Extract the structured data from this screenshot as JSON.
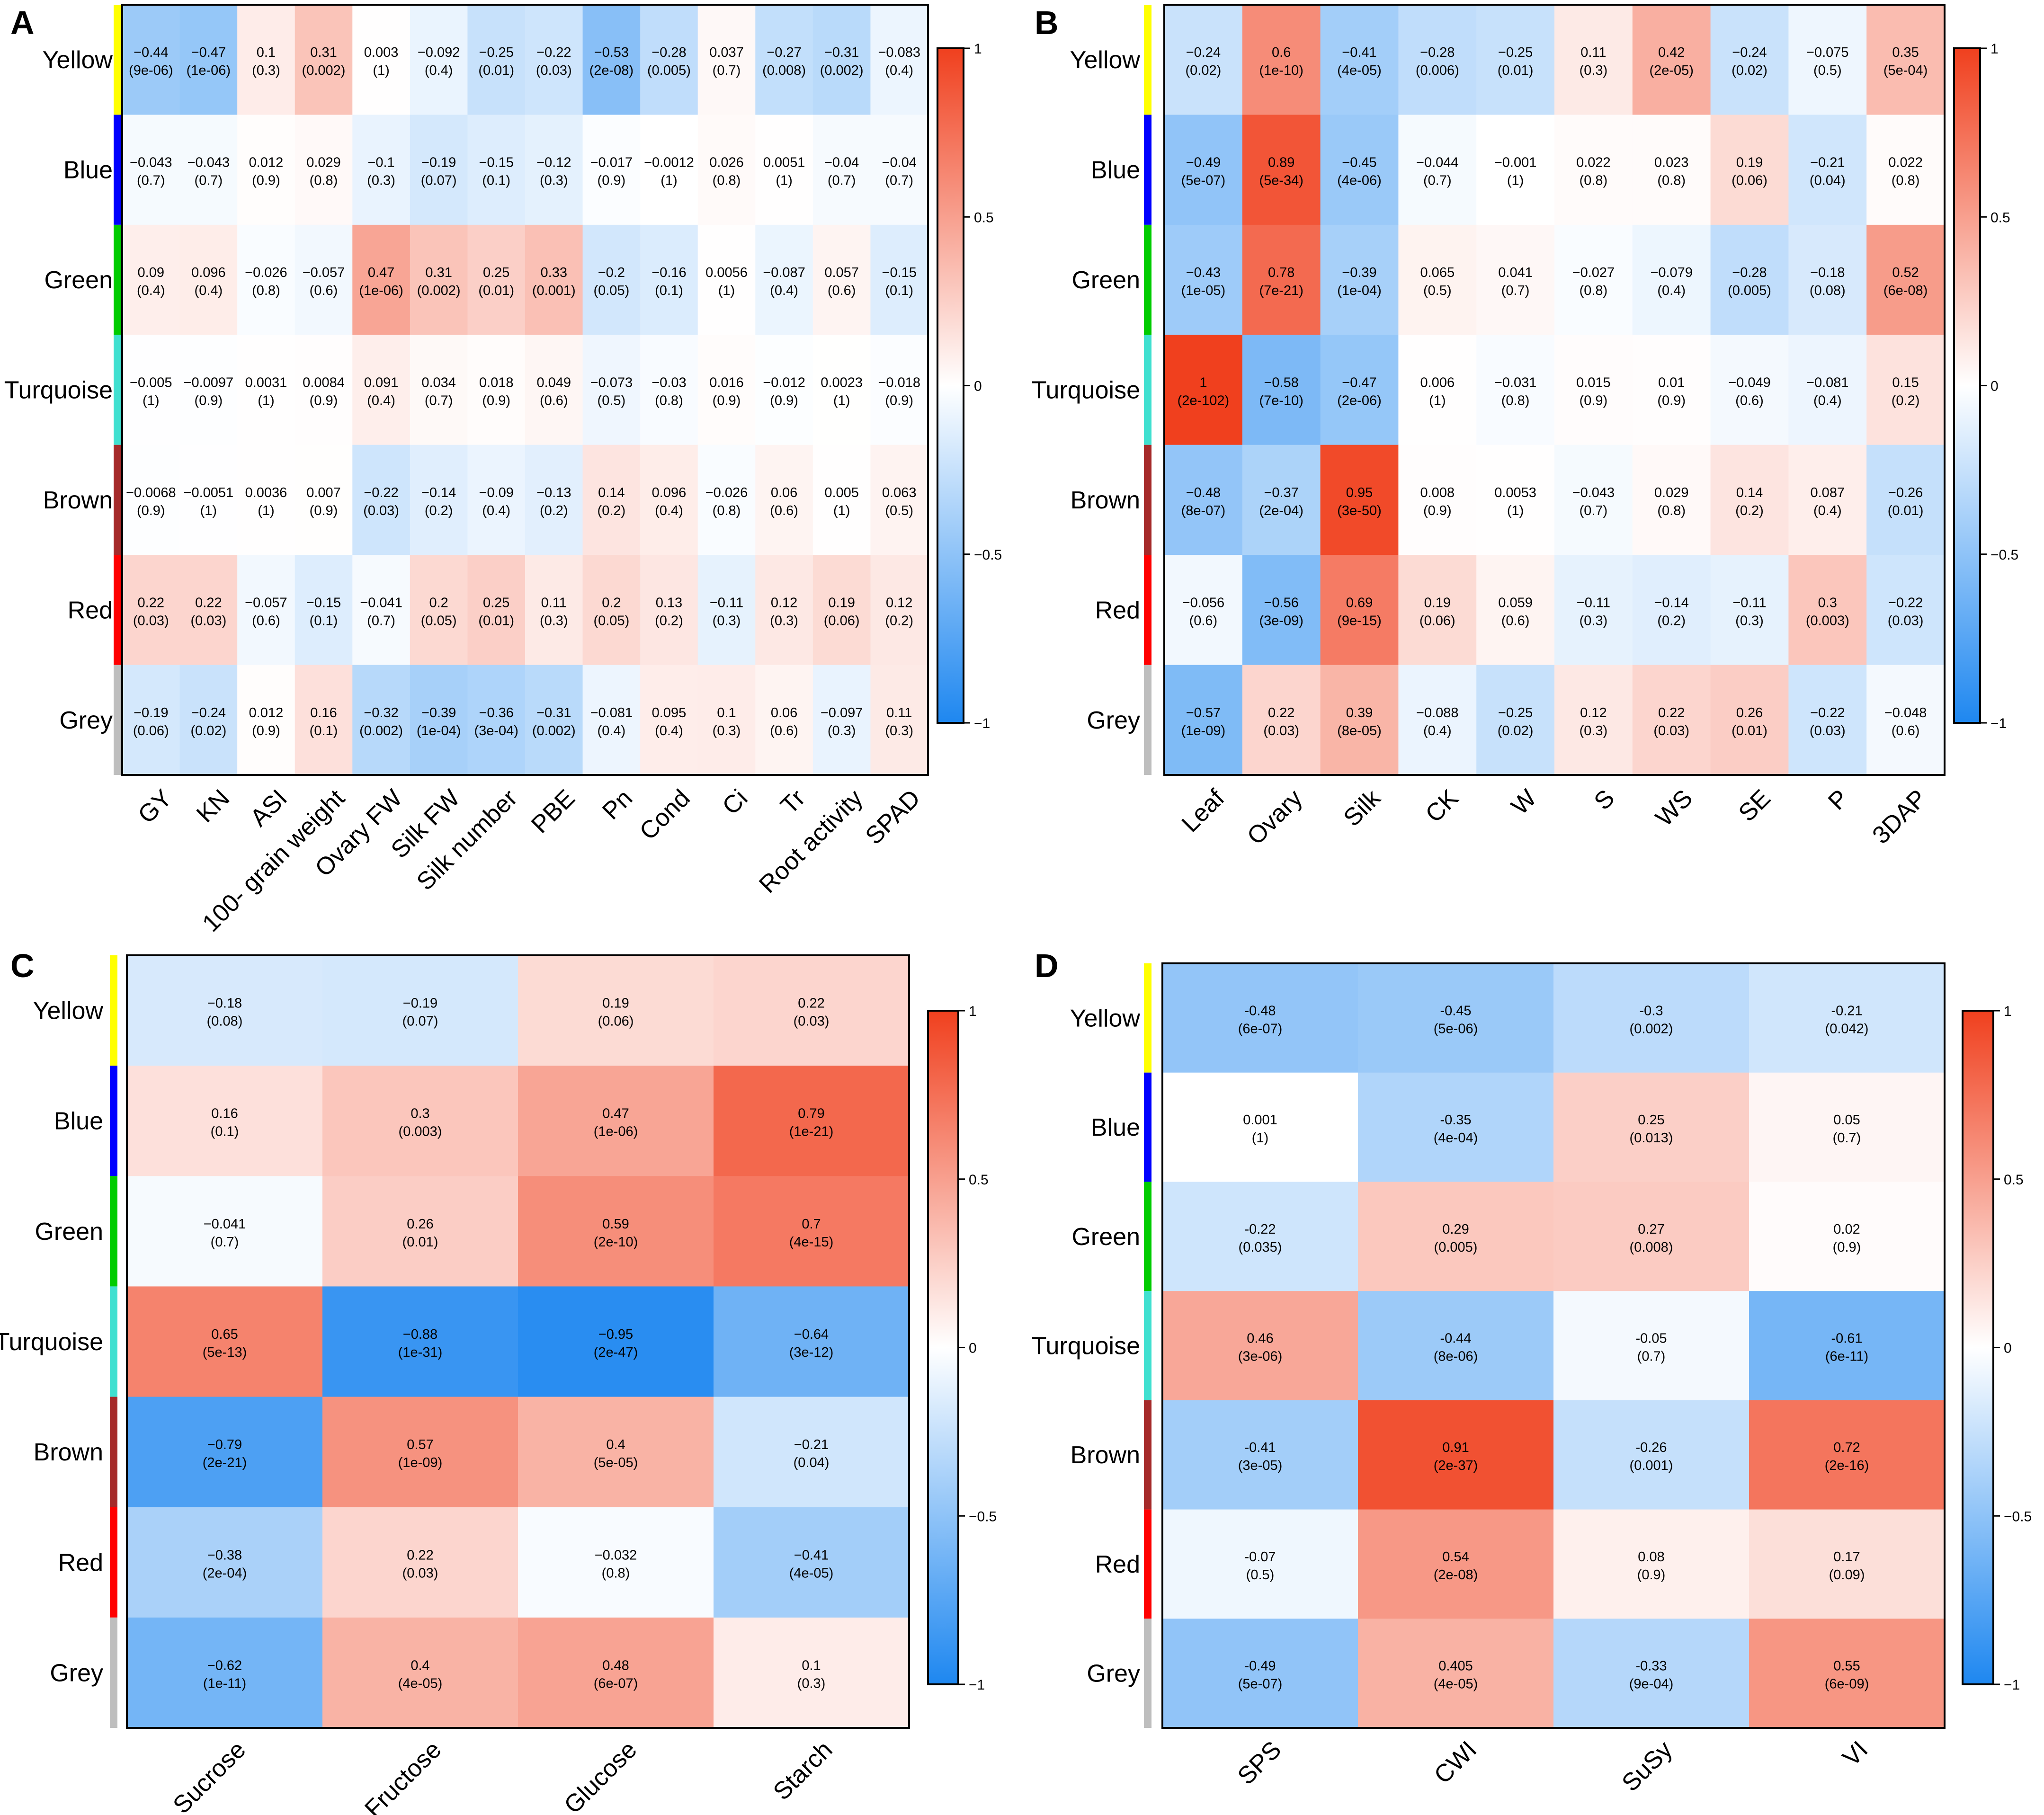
{
  "figure": {
    "colorbar": {
      "ticks": [
        "1",
        "0.5",
        "0",
        "−0.5",
        "−1"
      ],
      "tick_values": [
        1,
        0.5,
        0,
        -0.5,
        -1
      ]
    },
    "modules": [
      {
        "name": "Yellow",
        "color": "#ffff00"
      },
      {
        "name": "Blue",
        "color": "#0000ff"
      },
      {
        "name": "Green",
        "color": "#00cc00"
      },
      {
        "name": "Turquoise",
        "color": "#40e0d0"
      },
      {
        "name": "Brown",
        "color": "#a52a2a"
      },
      {
        "name": "Red",
        "color": "#ff0000"
      },
      {
        "name": "Grey",
        "color": "#bebebe"
      }
    ],
    "scale_colors": {
      "neg": "#1e87f0",
      "mid": "#ffffff",
      "pos": "#f0401e"
    }
  },
  "chart_data": [
    {
      "panel": "A",
      "type": "heatmap",
      "rows": [
        "Yellow",
        "Blue",
        "Green",
        "Turquoise",
        "Brown",
        "Red",
        "Grey"
      ],
      "columns": [
        "GY",
        "KN",
        "ASI",
        "100- grain weight",
        "Ovary FW",
        "Silk FW",
        "Silk number",
        "PBE",
        "Pn",
        "Cond",
        "Ci",
        "Tr",
        "Root activity",
        "SPAD"
      ],
      "values": [
        [
          -0.44,
          -0.47,
          0.1,
          0.31,
          0.003,
          -0.092,
          -0.25,
          -0.22,
          -0.53,
          -0.28,
          0.037,
          -0.27,
          -0.31,
          -0.083
        ],
        [
          -0.043,
          -0.043,
          0.012,
          0.029,
          -0.1,
          -0.19,
          -0.15,
          -0.12,
          -0.017,
          -0.0012,
          0.026,
          0.0051,
          -0.04,
          -0.04
        ],
        [
          0.09,
          0.096,
          -0.026,
          -0.057,
          0.47,
          0.31,
          0.25,
          0.33,
          -0.2,
          -0.16,
          0.0056,
          -0.087,
          0.057,
          -0.15
        ],
        [
          -0.005,
          -0.0097,
          0.0031,
          0.0084,
          0.091,
          0.034,
          0.018,
          0.049,
          -0.073,
          -0.03,
          0.016,
          -0.012,
          0.0023,
          -0.018
        ],
        [
          -0.0068,
          -0.0051,
          0.0036,
          0.007,
          -0.22,
          -0.14,
          -0.09,
          -0.13,
          0.14,
          0.096,
          -0.026,
          0.06,
          0.005,
          0.063
        ],
        [
          0.22,
          0.22,
          -0.057,
          -0.15,
          -0.041,
          0.2,
          0.25,
          0.11,
          0.2,
          0.13,
          -0.11,
          0.12,
          0.19,
          0.12
        ],
        [
          -0.19,
          -0.24,
          0.012,
          0.16,
          -0.32,
          -0.39,
          -0.36,
          -0.31,
          -0.081,
          0.095,
          0.1,
          0.06,
          -0.097,
          0.11
        ]
      ],
      "labels": [
        [
          "−0.44",
          "−0.47",
          "0.1",
          "0.31",
          "0.003",
          "−0.092",
          "−0.25",
          "−0.22",
          "−0.53",
          "−0.28",
          "0.037",
          "−0.27",
          "−0.31",
          "−0.083"
        ],
        [
          "−0.043",
          "−0.043",
          "0.012",
          "0.029",
          "−0.1",
          "−0.19",
          "−0.15",
          "−0.12",
          "−0.017",
          "−0.0012",
          "0.026",
          "0.0051",
          "−0.04",
          "−0.04"
        ],
        [
          "0.09",
          "0.096",
          "−0.026",
          "−0.057",
          "0.47",
          "0.31",
          "0.25",
          "0.33",
          "−0.2",
          "−0.16",
          "0.0056",
          "−0.087",
          "0.057",
          "−0.15"
        ],
        [
          "−0.005",
          "−0.0097",
          "0.0031",
          "0.0084",
          "0.091",
          "0.034",
          "0.018",
          "0.049",
          "−0.073",
          "−0.03",
          "0.016",
          "−0.012",
          "0.0023",
          "−0.018"
        ],
        [
          "−0.0068",
          "−0.0051",
          "0.0036",
          "0.007",
          "−0.22",
          "−0.14",
          "−0.09",
          "−0.13",
          "0.14",
          "0.096",
          "−0.026",
          "0.06",
          "0.005",
          "0.063"
        ],
        [
          "0.22",
          "0.22",
          "−0.057",
          "−0.15",
          "−0.041",
          "0.2",
          "0.25",
          "0.11",
          "0.2",
          "0.13",
          "−0.11",
          "0.12",
          "0.19",
          "0.12"
        ],
        [
          "−0.19",
          "−0.24",
          "0.012",
          "0.16",
          "−0.32",
          "−0.39",
          "−0.36",
          "−0.31",
          "−0.081",
          "0.095",
          "0.1",
          "0.06",
          "−0.097",
          "0.11"
        ]
      ],
      "pvalues": [
        [
          "(9e-06)",
          "(1e-06)",
          "(0.3)",
          "(0.002)",
          "(1)",
          "(0.4)",
          "(0.01)",
          "(0.03)",
          "(2e-08)",
          "(0.005)",
          "(0.7)",
          "(0.008)",
          "(0.002)",
          "(0.4)"
        ],
        [
          "(0.7)",
          "(0.7)",
          "(0.9)",
          "(0.8)",
          "(0.3)",
          "(0.07)",
          "(0.1)",
          "(0.3)",
          "(0.9)",
          "(1)",
          "(0.8)",
          "(1)",
          "(0.7)",
          "(0.7)"
        ],
        [
          "(0.4)",
          "(0.4)",
          "(0.8)",
          "(0.6)",
          "(1e-06)",
          "(0.002)",
          "(0.01)",
          "(0.001)",
          "(0.05)",
          "(0.1)",
          "(1)",
          "(0.4)",
          "(0.6)",
          "(0.1)"
        ],
        [
          "(1)",
          "(0.9)",
          "(1)",
          "(0.9)",
          "(0.4)",
          "(0.7)",
          "(0.9)",
          "(0.6)",
          "(0.5)",
          "(0.8)",
          "(0.9)",
          "(0.9)",
          "(1)",
          "(0.9)"
        ],
        [
          "(0.9)",
          "(1)",
          "(1)",
          "(0.9)",
          "(0.03)",
          "(0.2)",
          "(0.4)",
          "(0.2)",
          "(0.2)",
          "(0.4)",
          "(0.8)",
          "(0.6)",
          "(1)",
          "(0.5)"
        ],
        [
          "(0.03)",
          "(0.03)",
          "(0.6)",
          "(0.1)",
          "(0.7)",
          "(0.05)",
          "(0.01)",
          "(0.3)",
          "(0.05)",
          "(0.2)",
          "(0.3)",
          "(0.3)",
          "(0.06)",
          "(0.2)"
        ],
        [
          "(0.06)",
          "(0.02)",
          "(0.9)",
          "(0.1)",
          "(0.002)",
          "(1e-04)",
          "(3e-04)",
          "(0.002)",
          "(0.4)",
          "(0.4)",
          "(0.3)",
          "(0.6)",
          "(0.3)",
          "(0.3)"
        ]
      ],
      "colorbar_range": [
        -1,
        1
      ]
    },
    {
      "panel": "B",
      "type": "heatmap",
      "rows": [
        "Yellow",
        "Blue",
        "Green",
        "Turquoise",
        "Brown",
        "Red",
        "Grey"
      ],
      "columns": [
        "Leaf",
        "Ovary",
        "Silk",
        "CK",
        "W",
        "S",
        "WS",
        "SE",
        "P",
        "3DAP"
      ],
      "values": [
        [
          -0.24,
          0.6,
          -0.41,
          -0.28,
          -0.25,
          0.11,
          0.42,
          -0.24,
          -0.075,
          0.35
        ],
        [
          -0.49,
          0.89,
          -0.45,
          -0.044,
          -0.001,
          0.022,
          0.023,
          0.19,
          -0.21,
          0.022
        ],
        [
          -0.43,
          0.78,
          -0.39,
          0.065,
          0.041,
          -0.027,
          -0.079,
          -0.28,
          -0.18,
          0.52
        ],
        [
          1,
          -0.58,
          -0.47,
          0.006,
          -0.031,
          0.015,
          0.01,
          -0.049,
          -0.081,
          0.15
        ],
        [
          -0.48,
          -0.37,
          0.95,
          0.008,
          0.0053,
          -0.043,
          0.029,
          0.14,
          0.087,
          -0.26
        ],
        [
          -0.056,
          -0.56,
          0.69,
          0.19,
          0.059,
          -0.11,
          -0.14,
          -0.11,
          0.3,
          -0.22
        ],
        [
          -0.57,
          0.22,
          0.39,
          -0.088,
          -0.25,
          0.12,
          0.22,
          0.26,
          -0.22,
          -0.048
        ]
      ],
      "labels": [
        [
          "−0.24",
          "0.6",
          "−0.41",
          "−0.28",
          "−0.25",
          "0.11",
          "0.42",
          "−0.24",
          "−0.075",
          "0.35"
        ],
        [
          "−0.49",
          "0.89",
          "−0.45",
          "−0.044",
          "−0.001",
          "0.022",
          "0.023",
          "0.19",
          "−0.21",
          "0.022"
        ],
        [
          "−0.43",
          "0.78",
          "−0.39",
          "0.065",
          "0.041",
          "−0.027",
          "−0.079",
          "−0.28",
          "−0.18",
          "0.52"
        ],
        [
          "1",
          "−0.58",
          "−0.47",
          "0.006",
          "−0.031",
          "0.015",
          "0.01",
          "−0.049",
          "−0.081",
          "0.15"
        ],
        [
          "−0.48",
          "−0.37",
          "0.95",
          "0.008",
          "0.0053",
          "−0.043",
          "0.029",
          "0.14",
          "0.087",
          "−0.26"
        ],
        [
          "−0.056",
          "−0.56",
          "0.69",
          "0.19",
          "0.059",
          "−0.11",
          "−0.14",
          "−0.11",
          "0.3",
          "−0.22"
        ],
        [
          "−0.57",
          "0.22",
          "0.39",
          "−0.088",
          "−0.25",
          "0.12",
          "0.22",
          "0.26",
          "−0.22",
          "−0.048"
        ]
      ],
      "pvalues": [
        [
          "(0.02)",
          "(1e-10)",
          "(4e-05)",
          "(0.006)",
          "(0.01)",
          "(0.3)",
          "(2e-05)",
          "(0.02)",
          "(0.5)",
          "(5e-04)"
        ],
        [
          "(5e-07)",
          "(5e-34)",
          "(4e-06)",
          "(0.7)",
          "(1)",
          "(0.8)",
          "(0.8)",
          "(0.06)",
          "(0.04)",
          "(0.8)"
        ],
        [
          "(1e-05)",
          "(7e-21)",
          "(1e-04)",
          "(0.5)",
          "(0.7)",
          "(0.8)",
          "(0.4)",
          "(0.005)",
          "(0.08)",
          "(6e-08)"
        ],
        [
          "(2e-102)",
          "(7e-10)",
          "(2e-06)",
          "(1)",
          "(0.8)",
          "(0.9)",
          "(0.9)",
          "(0.6)",
          "(0.4)",
          "(0.2)"
        ],
        [
          "(8e-07)",
          "(2e-04)",
          "(3e-50)",
          "(0.9)",
          "(1)",
          "(0.7)",
          "(0.8)",
          "(0.2)",
          "(0.4)",
          "(0.01)"
        ],
        [
          "(0.6)",
          "(3e-09)",
          "(9e-15)",
          "(0.06)",
          "(0.6)",
          "(0.3)",
          "(0.2)",
          "(0.3)",
          "(0.003)",
          "(0.03)"
        ],
        [
          "(1e-09)",
          "(0.03)",
          "(8e-05)",
          "(0.4)",
          "(0.02)",
          "(0.3)",
          "(0.03)",
          "(0.01)",
          "(0.03)",
          "(0.6)"
        ]
      ],
      "colorbar_range": [
        -1,
        1
      ]
    },
    {
      "panel": "C",
      "type": "heatmap",
      "rows": [
        "Yellow",
        "Blue",
        "Green",
        "Turquoise",
        "Brown",
        "Red",
        "Grey"
      ],
      "columns": [
        "Sucrose",
        "Fructose",
        "Glucose",
        "Starch"
      ],
      "values": [
        [
          -0.18,
          -0.19,
          0.19,
          0.22
        ],
        [
          0.16,
          0.3,
          0.47,
          0.79
        ],
        [
          -0.041,
          0.26,
          0.59,
          0.7
        ],
        [
          0.65,
          -0.88,
          -0.95,
          -0.64
        ],
        [
          -0.79,
          0.57,
          0.4,
          -0.21
        ],
        [
          -0.38,
          0.22,
          -0.032,
          -0.41
        ],
        [
          -0.62,
          0.4,
          0.48,
          0.1
        ]
      ],
      "labels": [
        [
          "−0.18",
          "−0.19",
          "0.19",
          "0.22"
        ],
        [
          "0.16",
          "0.3",
          "0.47",
          "0.79"
        ],
        [
          "−0.041",
          "0.26",
          "0.59",
          "0.7"
        ],
        [
          "0.65",
          "−0.88",
          "−0.95",
          "−0.64"
        ],
        [
          "−0.79",
          "0.57",
          "0.4",
          "−0.21"
        ],
        [
          "−0.38",
          "0.22",
          "−0.032",
          "−0.41"
        ],
        [
          "−0.62",
          "0.4",
          "0.48",
          "0.1"
        ]
      ],
      "pvalues": [
        [
          "(0.08)",
          "(0.07)",
          "(0.06)",
          "(0.03)"
        ],
        [
          "(0.1)",
          "(0.003)",
          "(1e-06)",
          "(1e-21)"
        ],
        [
          "(0.7)",
          "(0.01)",
          "(2e-10)",
          "(4e-15)"
        ],
        [
          "(5e-13)",
          "(1e-31)",
          "(2e-47)",
          "(3e-12)"
        ],
        [
          "(2e-21)",
          "(1e-09)",
          "(5e-05)",
          "(0.04)"
        ],
        [
          "(2e-04)",
          "(0.03)",
          "(0.8)",
          "(4e-05)"
        ],
        [
          "(1e-11)",
          "(4e-05)",
          "(6e-07)",
          "(0.3)"
        ]
      ],
      "colorbar_range": [
        -1,
        1
      ]
    },
    {
      "panel": "D",
      "type": "heatmap",
      "rows": [
        "Yellow",
        "Blue",
        "Green",
        "Turquoise",
        "Brown",
        "Red",
        "Grey"
      ],
      "columns": [
        "SPS",
        "CWI",
        "SuSy",
        "VI"
      ],
      "values": [
        [
          -0.48,
          -0.45,
          -0.3,
          -0.21
        ],
        [
          0.001,
          -0.35,
          0.25,
          0.05
        ],
        [
          -0.22,
          0.29,
          0.27,
          0.02
        ],
        [
          0.46,
          -0.44,
          -0.05,
          -0.61
        ],
        [
          -0.41,
          0.91,
          -0.26,
          0.72
        ],
        [
          -0.07,
          0.54,
          0.08,
          0.17
        ],
        [
          -0.49,
          0.405,
          -0.33,
          0.55
        ]
      ],
      "labels": [
        [
          "-0.48",
          "-0.45",
          "-0.3",
          "-0.21"
        ],
        [
          "0.001",
          "-0.35",
          "0.25",
          "0.05"
        ],
        [
          "-0.22",
          "0.29",
          "0.27",
          "0.02"
        ],
        [
          "0.46",
          "-0.44",
          "-0.05",
          "-0.61"
        ],
        [
          "-0.41",
          "0.91",
          "-0.26",
          "0.72"
        ],
        [
          "-0.07",
          "0.54",
          "0.08",
          "0.17"
        ],
        [
          "-0.49",
          "0.405",
          "-0.33",
          "0.55"
        ]
      ],
      "pvalues": [
        [
          "(6e-07)",
          "(5e-06)",
          "(0.002)",
          "(0.042)"
        ],
        [
          "(1)",
          "(4e-04)",
          "(0.013)",
          "(0.7)"
        ],
        [
          "(0.035)",
          "(0.005)",
          "(0.008)",
          "(0.9)"
        ],
        [
          "(3e-06)",
          "(8e-06)",
          "(0.7)",
          "(6e-11)"
        ],
        [
          "(3e-05)",
          "(2e-37)",
          "(0.001)",
          "(2e-16)"
        ],
        [
          "(0.5)",
          "(2e-08)",
          "(0.9)",
          "(0.09)"
        ],
        [
          "(5e-07)",
          "(4e-05)",
          "(9e-04)",
          "(6e-09)"
        ]
      ],
      "colorbar_range": [
        -1,
        1
      ]
    }
  ]
}
